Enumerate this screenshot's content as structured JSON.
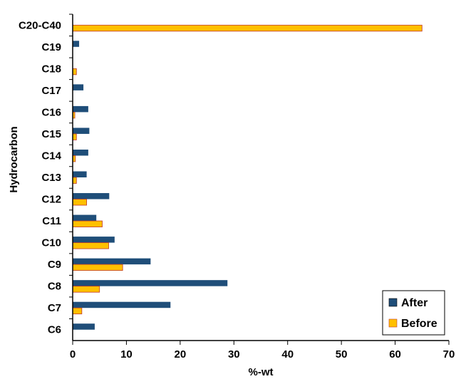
{
  "chart_data": {
    "type": "bar",
    "orientation": "horizontal",
    "categories": [
      "C20-C40",
      "C19",
      "C18",
      "C17",
      "C16",
      "C15",
      "C14",
      "C13",
      "C12",
      "C11",
      "C10",
      "C9",
      "C8",
      "C7",
      "C6"
    ],
    "series": [
      {
        "name": "After",
        "color": "#1F4E79",
        "values": [
          0,
          1.2,
          0,
          2.0,
          2.9,
          3.1,
          2.9,
          2.6,
          6.8,
          4.4,
          7.8,
          14.5,
          28.8,
          18.2,
          4.1
        ]
      },
      {
        "name": "Before",
        "color": "#FFC000",
        "values": [
          65.0,
          0,
          0.7,
          0,
          0.4,
          0.7,
          0.5,
          0.7,
          2.6,
          5.5,
          6.7,
          9.3,
          5.0,
          1.7,
          0
        ]
      }
    ],
    "xlabel": "%-wt",
    "ylabel": "Hydrocarbon",
    "xlim": [
      0,
      70
    ],
    "xticks": [
      0,
      10,
      20,
      30,
      40,
      50,
      60,
      70
    ],
    "grid": false,
    "legend_position": "bottom-right",
    "bar_outline_color": "#C0392B"
  }
}
